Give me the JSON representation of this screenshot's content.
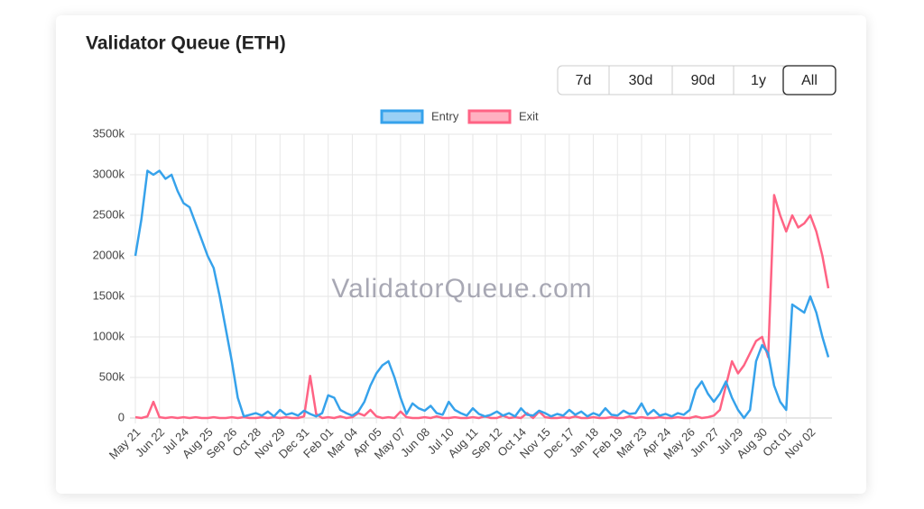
{
  "chart_data": {
    "type": "line",
    "title": "Validator Queue (ETH)",
    "watermark": "ValidatorQueue.com",
    "ranges": [
      "7d",
      "30d",
      "90d",
      "1y",
      "All"
    ],
    "active_range": "All",
    "categories": [
      "May 21",
      null,
      null,
      null,
      "Jun 22",
      null,
      null,
      null,
      "Jul 24",
      null,
      null,
      null,
      "Aug 25",
      null,
      null,
      null,
      "Sep 26",
      null,
      null,
      null,
      "Oct 28",
      null,
      null,
      null,
      "Nov 29",
      null,
      null,
      null,
      "Dec 31",
      null,
      null,
      null,
      "Feb 01",
      null,
      null,
      null,
      "Mar 04",
      null,
      null,
      null,
      "Apr 05",
      null,
      null,
      null,
      "May 07",
      null,
      null,
      null,
      "Jun 08",
      null,
      null,
      null,
      "Jul 10",
      null,
      null,
      null,
      "Aug 11",
      null,
      null,
      null,
      "Sep 12",
      null,
      null,
      null,
      "Oct 14",
      null,
      null,
      null,
      "Nov 15",
      null,
      null,
      null,
      "Dec 17",
      null,
      null,
      null,
      "Jan 18",
      null,
      null,
      null,
      "Feb 19",
      null,
      null,
      null,
      "Mar 23",
      null,
      null,
      null,
      "Apr 24",
      null,
      null,
      null,
      "May 26",
      null,
      null,
      null,
      "Jun 27",
      null,
      null,
      null,
      "Jul 29",
      null,
      null,
      null,
      "Aug 30",
      null,
      null,
      null,
      "Oct 01",
      null,
      null,
      null,
      "Nov 02",
      null,
      null,
      null
    ],
    "series": [
      {
        "name": "Entry",
        "color": "#36a2eb",
        "fill": "rgba(54,162,235,0.5)",
        "values": [
          2000,
          2450,
          3050,
          3000,
          3050,
          2950,
          3000,
          2800,
          2650,
          2600,
          2400,
          2200,
          2000,
          1850,
          1500,
          1100,
          700,
          250,
          20,
          40,
          60,
          30,
          80,
          20,
          100,
          40,
          60,
          30,
          90,
          50,
          20,
          60,
          280,
          250,
          100,
          60,
          30,
          80,
          200,
          400,
          550,
          650,
          700,
          500,
          250,
          50,
          180,
          120,
          90,
          150,
          60,
          40,
          200,
          100,
          60,
          30,
          120,
          50,
          20,
          40,
          80,
          30,
          60,
          20,
          120,
          40,
          30,
          90,
          60,
          20,
          50,
          30,
          100,
          40,
          80,
          20,
          60,
          30,
          120,
          40,
          30,
          90,
          50,
          60,
          180,
          40,
          100,
          30,
          50,
          20,
          60,
          40,
          100,
          350,
          450,
          300,
          200,
          300,
          450,
          250,
          100,
          0,
          100,
          700,
          900,
          800,
          400,
          200,
          100,
          1400,
          1350,
          1300,
          1500,
          1300,
          1000,
          750
        ]
      },
      {
        "name": "Exit",
        "color": "#ff6384",
        "fill": "rgba(255,99,132,0.5)",
        "values": [
          10,
          0,
          20,
          200,
          10,
          0,
          10,
          0,
          10,
          0,
          10,
          0,
          0,
          10,
          0,
          0,
          10,
          0,
          10,
          0,
          0,
          10,
          0,
          10,
          0,
          10,
          0,
          0,
          20,
          520,
          50,
          0,
          10,
          0,
          20,
          0,
          10,
          60,
          30,
          100,
          20,
          0,
          10,
          0,
          80,
          10,
          0,
          0,
          10,
          0,
          20,
          0,
          0,
          10,
          0,
          0,
          10,
          0,
          20,
          0,
          0,
          30,
          0,
          10,
          0,
          60,
          0,
          80,
          10,
          0,
          0,
          10,
          0,
          20,
          0,
          0,
          10,
          0,
          0,
          10,
          0,
          0,
          20,
          0,
          10,
          0,
          0,
          10,
          0,
          0,
          10,
          0,
          0,
          20,
          0,
          10,
          30,
          100,
          400,
          700,
          550,
          650,
          800,
          950,
          1000,
          750,
          2750,
          2500,
          2300,
          2500,
          2350,
          2400,
          2500,
          2300,
          2000,
          1600
        ]
      }
    ],
    "ylim": [
      0,
      3500
    ],
    "yticks": [
      0,
      {
        "value": 500,
        "label": "500k"
      },
      {
        "value": 1000,
        "label": "1000k"
      },
      {
        "value": 1500,
        "label": "1500k"
      },
      {
        "value": 2000,
        "label": "2000k"
      },
      {
        "value": 2500,
        "label": "2500k"
      },
      {
        "value": 3000,
        "label": "3000k"
      },
      {
        "value": 3500,
        "label": "3500k"
      }
    ],
    "grid": true
  }
}
